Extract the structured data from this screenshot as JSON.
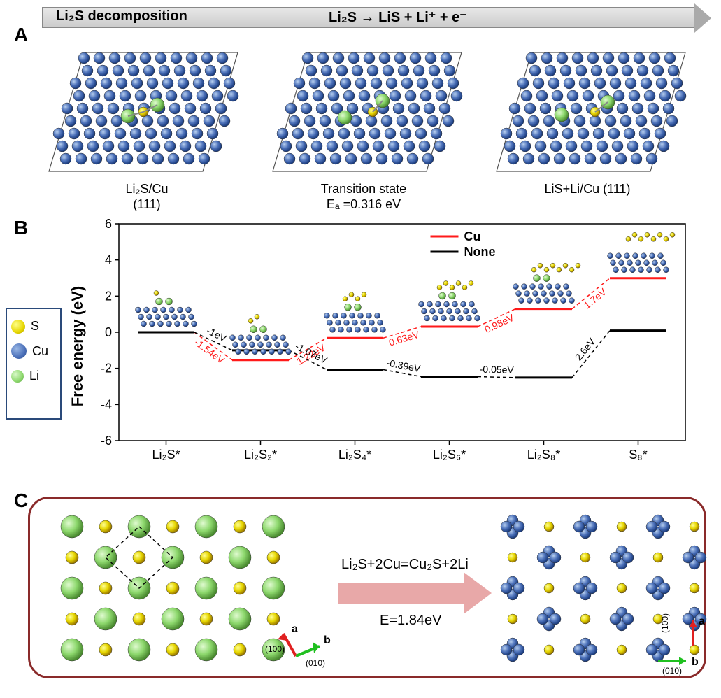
{
  "header": {
    "left_text": "Li₂S decomposition",
    "right_text": "Li₂S → LiS + Li⁺ + e⁻"
  },
  "colors": {
    "s": "#e6d600",
    "cu": "#4a6fb8",
    "li": "#8dd86d",
    "cu_line": "#ff1a1a",
    "none_line": "#000000",
    "arrow_c": "#e8a8a8",
    "axis_red": "#e02020",
    "axis_green": "#20c020",
    "background": "#ffffff",
    "panel_c_border": "#8a2a2a"
  },
  "panel_labels": {
    "a": "A",
    "b": "B",
    "c": "C"
  },
  "panel_a": {
    "surfaces": [
      {
        "label_line1": "Li₂S/Cu",
        "label_line2": "(111)"
      },
      {
        "label_line1": "Transition state",
        "label_line2": "Eₐ =0.316 eV"
      },
      {
        "label_line1": "LiS+Li/Cu (111)",
        "label_line2": ""
      }
    ]
  },
  "legend_atoms": [
    {
      "name": "S",
      "class": "atom-s",
      "size": 20
    },
    {
      "name": "Cu",
      "class": "atom-cu",
      "size": 22
    },
    {
      "name": "Li",
      "class": "atom-li",
      "size": 18
    }
  ],
  "chart": {
    "ylabel": "Free energy (eV)",
    "ylim": [
      -6,
      6
    ],
    "ytick_step": 2,
    "yticks": [
      -6,
      -4,
      -2,
      0,
      2,
      4,
      6
    ],
    "x_categories": [
      "Li₂S*",
      "Li₂S₂*",
      "Li₂S₄*",
      "Li₂S₆*",
      "Li₂S₈*",
      "S₈*"
    ],
    "label_fontsize": 22,
    "tick_fontsize": 18,
    "legend": [
      {
        "name": "Cu",
        "color": "#ff1a1a"
      },
      {
        "name": "None",
        "color": "#000000"
      }
    ],
    "series": {
      "cu": [
        0.0,
        -1.54,
        -0.32,
        0.31,
        1.29,
        2.99
      ],
      "none": [
        0.0,
        -1.0,
        -2.07,
        -2.46,
        -2.51,
        0.09
      ]
    },
    "segment_labels": {
      "cu": [
        "-1.54eV",
        "1.22eV",
        "0.63eV",
        "0.98eV",
        "1.7eV"
      ],
      "none": [
        "-1eV",
        "-1.07eV",
        "-0.39eV",
        "-0.05eV",
        "2.6eV"
      ]
    },
    "step_halfwidth": 0.3
  },
  "panel_c": {
    "equation": "Li₂S+2Cu=Cu₂S+2Li",
    "energy": "E=1.84eV",
    "axes_left": {
      "a_dir": "(100)",
      "b_dir": "(010)"
    },
    "axes_right": {
      "a_dir": "(100)",
      "b_dir": "(010)"
    },
    "li2s_lattice": {
      "rows": 5,
      "cols": 7
    },
    "cu2s_lattice": {
      "rows": 5,
      "cols": 6
    }
  }
}
